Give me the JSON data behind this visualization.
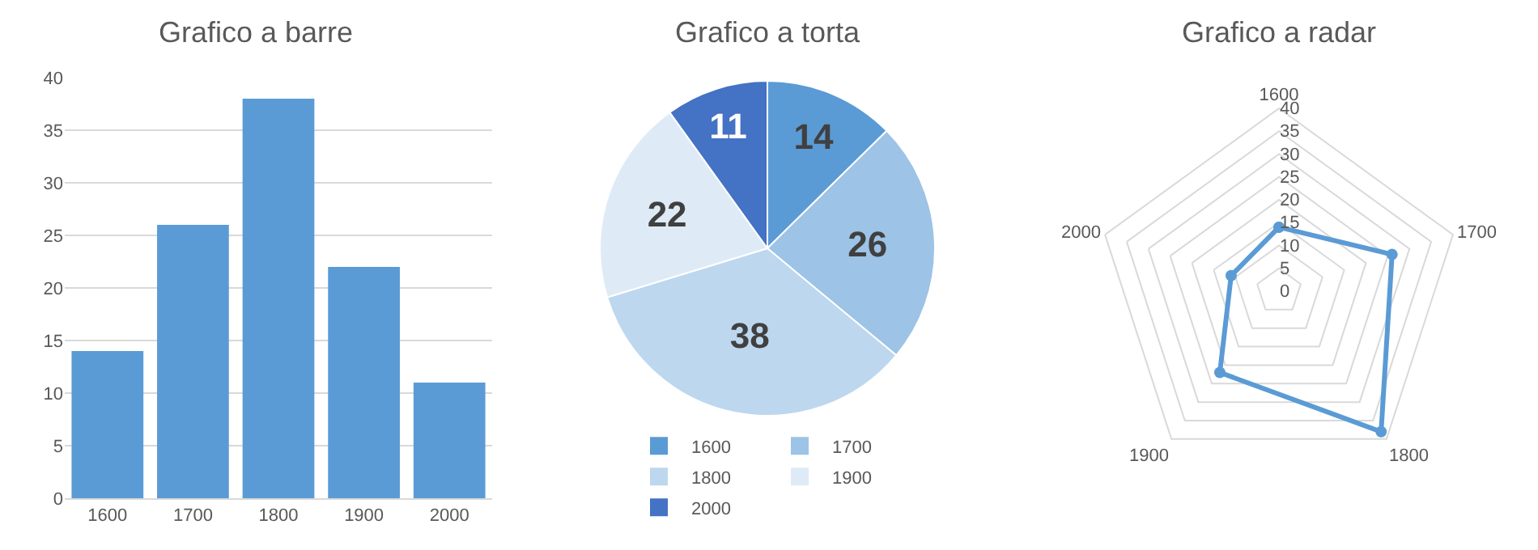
{
  "chart_data": [
    {
      "type": "bar",
      "title": "Grafico a barre",
      "categories": [
        "1600",
        "1700",
        "1800",
        "1900",
        "2000"
      ],
      "values": [
        14,
        26,
        38,
        22,
        11
      ],
      "color": "#5b9bd5",
      "ylim": [
        0,
        40
      ],
      "yticks": [
        0,
        5,
        10,
        15,
        20,
        25,
        30,
        35,
        40
      ],
      "grid": "y"
    },
    {
      "type": "pie",
      "title": "Grafico a torta",
      "categories": [
        "1600",
        "1700",
        "1800",
        "1900",
        "2000"
      ],
      "values": [
        14,
        26,
        38,
        22,
        11
      ],
      "colors": [
        "#5b9bd5",
        "#9dc3e6",
        "#bdd7ee",
        "#deebf7",
        "#4472c4"
      ],
      "data_labels": true,
      "legend": "bottom"
    },
    {
      "type": "radar",
      "title": "Grafico a radar",
      "categories": [
        "1600",
        "1700",
        "1800",
        "1900",
        "2000"
      ],
      "series": [
        {
          "color": "#5b9bd5",
          "values": [
            14,
            26,
            38,
            22,
            11
          ]
        }
      ],
      "ylim": [
        0,
        40
      ],
      "yticks": [
        0,
        5,
        10,
        15,
        20,
        25,
        30,
        35,
        40
      ],
      "grid": true,
      "marker": "circle"
    }
  ]
}
